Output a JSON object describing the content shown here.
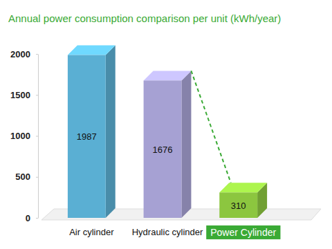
{
  "chart_data": {
    "type": "bar",
    "title": "Annual power consumption comparison per unit (kWh/year)",
    "categories": [
      "Air cylinder",
      "Hydraulic cylinder",
      "Power Cylinder"
    ],
    "values": [
      1987,
      1676,
      310
    ],
    "colors": [
      "#5aafd3",
      "#a6a1d3",
      "#8cc63f"
    ],
    "ylim": [
      0,
      2000
    ],
    "yticks": [
      0,
      500,
      1000,
      1500,
      2000
    ],
    "grid": false,
    "data_labels": true
  }
}
